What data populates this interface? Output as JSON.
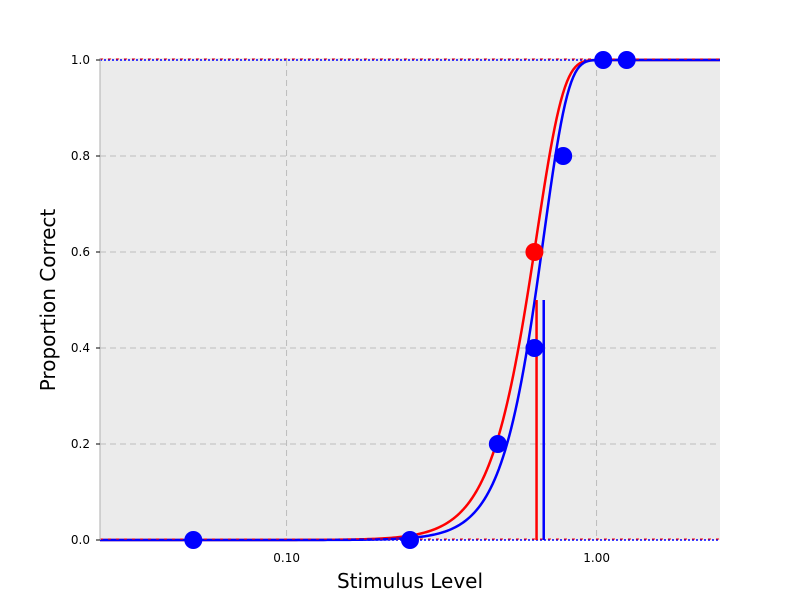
{
  "chart_data": {
    "type": "line",
    "xlabel": "Stimulus Level",
    "ylabel": "Proportion Correct",
    "x_scale": "log",
    "xlim": [
      0.025,
      2.5
    ],
    "ylim": [
      0,
      1
    ],
    "x_ticks": [
      {
        "value": 0.1,
        "label": "0.10"
      },
      {
        "value": 1.0,
        "label": "1.00"
      }
    ],
    "y_ticks": [
      {
        "value": 0,
        "label": "0.0"
      },
      {
        "value": 0.2,
        "label": "0.2"
      },
      {
        "value": 0.4,
        "label": "0.4"
      },
      {
        "value": 0.6,
        "label": "0.6"
      },
      {
        "value": 0.8,
        "label": "0.8"
      },
      {
        "value": 1.0,
        "label": "1.0"
      }
    ],
    "grid": true,
    "colors": {
      "background": "#ebebeb",
      "grid": "#b0b0b0",
      "red": "#ff0000",
      "blue": "#0000ff"
    },
    "fits": [
      {
        "color": "#ff0000",
        "threshold": 0.64,
        "slope": 5.0,
        "threshold_marker_height": 0.5
      },
      {
        "color": "#0000ff",
        "threshold": 0.675,
        "slope": 5.5,
        "threshold_marker_height": 0.5
      }
    ],
    "points": [
      {
        "x": 0.05,
        "y": 0.0,
        "color": "#0000ff"
      },
      {
        "x": 0.25,
        "y": 0.0,
        "color": "#0000ff"
      },
      {
        "x": 0.48,
        "y": 0.2,
        "color": "#0000ff"
      },
      {
        "x": 0.63,
        "y": 0.6,
        "color": "#ff0000"
      },
      {
        "x": 0.63,
        "y": 0.4,
        "color": "#0000ff"
      },
      {
        "x": 0.78,
        "y": 0.8,
        "color": "#0000ff"
      },
      {
        "x": 1.05,
        "y": 1.0,
        "color": "#0000ff"
      },
      {
        "x": 1.25,
        "y": 1.0,
        "color": "#0000ff"
      }
    ]
  }
}
